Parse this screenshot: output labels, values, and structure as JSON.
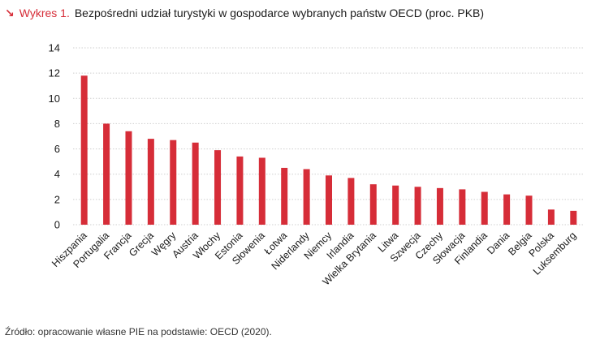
{
  "header": {
    "arrow_glyph": "↘",
    "figure_label": "Wykres 1.",
    "title": "Bezpośredni udział turystyki w gospodarce wybranych państw OECD (proc. PKB)"
  },
  "source": "Źródło: opracowanie własne PIE na podstawie: OECD (2020).",
  "colors": {
    "bar": "#d62d38",
    "accent": "#d62d38",
    "grid": "#cfcfcf",
    "text": "#1a1a1a"
  },
  "chart_data": {
    "type": "bar",
    "title": "Bezpośredni udział turystyki w gospodarce wybranych państw OECD (proc. PKB)",
    "xlabel": "",
    "ylabel": "",
    "ylim": [
      0,
      14
    ],
    "yticks": [
      0,
      2,
      4,
      6,
      8,
      10,
      12,
      14
    ],
    "grid": "horizontal-dotted",
    "categories": [
      "Hiszpania",
      "Portugalia",
      "Francja",
      "Grecja",
      "Węgry",
      "Austria",
      "Włochy",
      "Estonia",
      "Słowenia",
      "Łotwa",
      "Niderlandy",
      "Niemcy",
      "Irlandia",
      "Wielka Brytania",
      "Litwa",
      "Szwecja",
      "Czechy",
      "Słowacja",
      "Finlandia",
      "Dania",
      "Belgia",
      "Polska",
      "Luksemburg"
    ],
    "values": [
      11.8,
      8.0,
      7.4,
      6.8,
      6.7,
      6.5,
      5.9,
      5.4,
      5.3,
      4.5,
      4.4,
      3.9,
      3.7,
      3.2,
      3.1,
      3.0,
      2.9,
      2.8,
      2.6,
      2.4,
      2.3,
      1.2,
      1.1
    ]
  }
}
